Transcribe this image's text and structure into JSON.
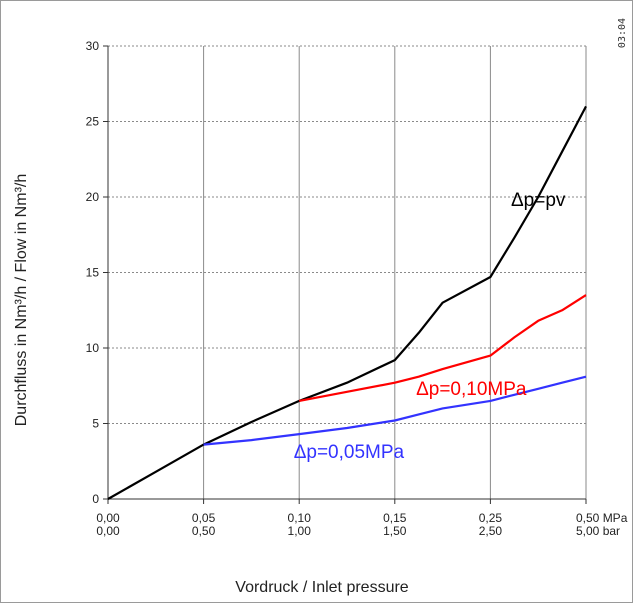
{
  "timestamp": "03:04",
  "chart_data": {
    "type": "line",
    "xlabel": "Vordruck / Inlet pressure",
    "ylabel": "Durchfluss in Nm³/h   /  Flow in Nm³/h",
    "ylim": [
      0,
      30
    ],
    "yticks": [
      "0",
      "5",
      "10",
      "15",
      "20",
      "25",
      "30"
    ],
    "x_categories_mpa": [
      "0,00",
      "0,05",
      "0,10",
      "0,15",
      "0,25",
      "0,50 MPa"
    ],
    "x_categories_bar": [
      "0,00",
      "0,50",
      "1,00",
      "1,50",
      "2,50",
      "5,00 bar"
    ],
    "x_pressure_mpa": [
      0.0,
      0.05,
      0.1,
      0.15,
      0.25,
      0.5
    ],
    "grid": true,
    "series": [
      {
        "name": "Δp=pv",
        "color": "#000000",
        "points": [
          [
            0.0,
            0.0
          ],
          [
            0.025,
            1.8
          ],
          [
            0.05,
            3.6
          ],
          [
            0.075,
            5.1
          ],
          [
            0.1,
            6.5
          ],
          [
            0.125,
            7.7
          ],
          [
            0.15,
            9.2
          ],
          [
            0.175,
            11.0
          ],
          [
            0.2,
            13.0
          ],
          [
            0.25,
            14.7
          ],
          [
            0.3125,
            17.3
          ],
          [
            0.375,
            20.0
          ],
          [
            0.4375,
            23.0
          ],
          [
            0.5,
            26.0
          ]
        ]
      },
      {
        "name": "Δp=0,10MPa",
        "color": "#ff0000",
        "points": [
          [
            0.1,
            6.5
          ],
          [
            0.125,
            7.1
          ],
          [
            0.15,
            7.7
          ],
          [
            0.175,
            8.1
          ],
          [
            0.2,
            8.6
          ],
          [
            0.25,
            9.5
          ],
          [
            0.3125,
            10.7
          ],
          [
            0.375,
            11.8
          ],
          [
            0.4375,
            12.5
          ],
          [
            0.5,
            13.5
          ]
        ]
      },
      {
        "name": "Δp=0,05MPa",
        "color": "#3333ff",
        "points": [
          [
            0.05,
            3.6
          ],
          [
            0.075,
            3.9
          ],
          [
            0.1,
            4.3
          ],
          [
            0.125,
            4.7
          ],
          [
            0.15,
            5.2
          ],
          [
            0.175,
            5.6
          ],
          [
            0.2,
            6.0
          ],
          [
            0.25,
            6.5
          ],
          [
            0.3125,
            6.9
          ],
          [
            0.375,
            7.3
          ],
          [
            0.4375,
            7.7
          ],
          [
            0.5,
            8.1
          ]
        ]
      }
    ]
  }
}
